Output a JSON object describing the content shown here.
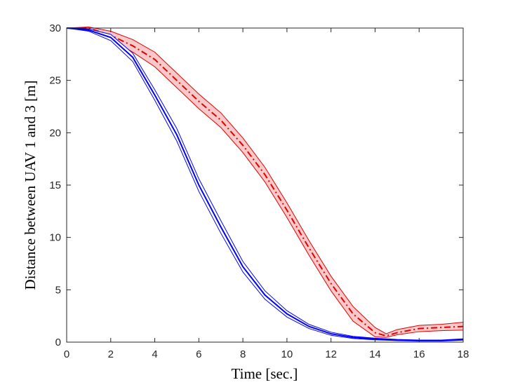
{
  "chart_data": {
    "type": "line",
    "xlabel": "Time [sec.]",
    "ylabel": "Distance between UAV 1 and 3 [m]",
    "x": [
      0,
      1,
      2,
      3,
      4,
      5,
      6,
      7,
      8,
      9,
      10,
      11,
      12,
      13,
      14,
      14.5,
      15,
      16,
      17,
      18
    ],
    "xlim": [
      0,
      18
    ],
    "xticks": [
      0,
      2,
      4,
      6,
      8,
      10,
      12,
      14,
      16,
      18
    ],
    "ylim": [
      0,
      30
    ],
    "yticks": [
      0,
      5,
      10,
      15,
      20,
      25,
      30
    ],
    "series": [
      {
        "color": "#e00000",
        "style": "dashdot",
        "band_fill": "#f9c8c8",
        "values": [
          30,
          30,
          29.3,
          28.3,
          27,
          25,
          23,
          21.2,
          18.8,
          16,
          12.6,
          9,
          5.6,
          2.7,
          0.9,
          0.6,
          0.9,
          1.3,
          1.4,
          1.5
        ],
        "upper": [
          30,
          30.1,
          29.7,
          28.9,
          27.7,
          25.7,
          23.7,
          21.9,
          19.5,
          16.7,
          13.3,
          9.7,
          6.3,
          3.4,
          1.4,
          0.8,
          1.2,
          1.6,
          1.7,
          1.9
        ],
        "lower": [
          30,
          29.9,
          28.9,
          27.7,
          26.3,
          24.3,
          22.3,
          20.5,
          18.1,
          15.3,
          11.9,
          8.3,
          4.9,
          2.0,
          0.5,
          0.45,
          0.7,
          1.0,
          1.1,
          1.15
        ]
      },
      {
        "color": "#0000ff",
        "style": "solid",
        "band_fill": "#ffffff",
        "values": [
          30,
          29.8,
          29.1,
          27.2,
          23.6,
          19.8,
          15.0,
          11.0,
          7.2,
          4.5,
          2.7,
          1.5,
          0.8,
          0.45,
          0.3,
          0.25,
          0.2,
          0.15,
          0.15,
          0.25
        ],
        "upper": [
          30,
          29.9,
          29.4,
          27.6,
          24.1,
          20.4,
          15.6,
          11.6,
          7.7,
          4.9,
          3.0,
          1.7,
          0.95,
          0.55,
          0.38,
          0.32,
          0.26,
          0.2,
          0.2,
          0.32
        ],
        "lower": [
          30,
          29.7,
          28.8,
          26.8,
          23.1,
          19.2,
          14.4,
          10.4,
          6.7,
          4.1,
          2.4,
          1.3,
          0.65,
          0.35,
          0.22,
          0.18,
          0.14,
          0.1,
          0.1,
          0.18
        ]
      }
    ]
  }
}
